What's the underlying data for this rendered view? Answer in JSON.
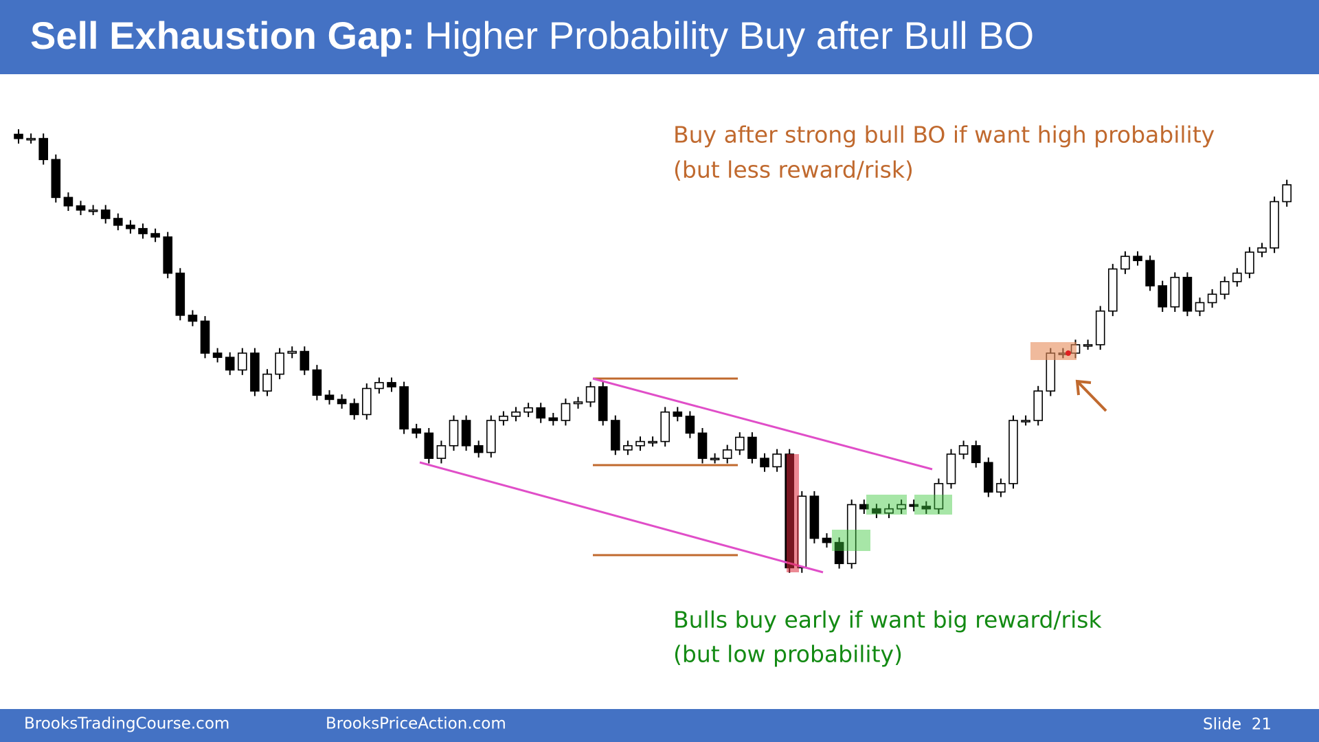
{
  "chart_data": {
    "type": "candlestick",
    "title_lead": "Sell Exhaustion Gap:",
    "title": "Higher Probability Buy after Bull BO",
    "annotations": [
      [
        "Buy after strong bull BO if want high probability",
        "(but less reward/risk)"
      ],
      [
        "Bulls buy early if want big reward/risk",
        "(but low probability)"
      ]
    ],
    "ylim": [
      0,
      600
    ],
    "open": [
      540,
      535,
      535,
      510,
      465,
      455,
      450,
      450,
      440,
      432,
      428,
      422,
      418,
      375,
      325,
      318,
      280,
      275,
      260,
      280,
      235,
      255,
      280,
      282,
      260,
      230,
      225,
      220,
      207,
      238,
      245,
      240,
      190,
      185,
      155,
      170,
      200,
      170,
      162,
      200,
      205,
      210,
      215,
      203,
      200,
      220,
      222,
      240,
      200,
      165,
      170,
      175,
      175,
      210,
      205,
      185,
      155,
      155,
      165,
      180,
      155,
      145,
      160,
      25,
      110,
      60,
      55,
      30,
      100,
      95,
      90,
      95,
      100,
      98,
      95,
      125,
      160,
      170,
      150,
      115,
      125,
      200,
      200,
      235,
      280,
      280,
      290,
      290,
      330,
      380,
      395,
      390,
      360,
      335,
      370,
      330,
      340,
      350,
      365,
      375,
      400,
      405,
      460
    ],
    "high": [
      546,
      541,
      541,
      516,
      471,
      461,
      456,
      456,
      446,
      438,
      434,
      428,
      424,
      381,
      331,
      324,
      286,
      281,
      286,
      286,
      261,
      286,
      288,
      288,
      266,
      236,
      231,
      226,
      244,
      251,
      251,
      246,
      196,
      191,
      176,
      206,
      206,
      176,
      206,
      211,
      216,
      221,
      221,
      209,
      226,
      228,
      246,
      246,
      206,
      176,
      181,
      181,
      216,
      216,
      211,
      191,
      161,
      171,
      186,
      186,
      161,
      166,
      166,
      116,
      116,
      66,
      61,
      106,
      106,
      101,
      101,
      106,
      106,
      104,
      131,
      166,
      176,
      176,
      156,
      131,
      206,
      206,
      241,
      286,
      286,
      296,
      296,
      336,
      386,
      401,
      401,
      396,
      366,
      376,
      376,
      346,
      356,
      371,
      381,
      406,
      411,
      466,
      486
    ],
    "low": [
      529,
      529,
      504,
      459,
      449,
      444,
      444,
      434,
      426,
      422,
      416,
      412,
      369,
      319,
      312,
      274,
      269,
      254,
      254,
      229,
      229,
      249,
      274,
      254,
      224,
      219,
      214,
      201,
      201,
      232,
      234,
      184,
      179,
      149,
      149,
      164,
      164,
      156,
      156,
      194,
      199,
      204,
      197,
      194,
      194,
      214,
      216,
      194,
      159,
      159,
      164,
      169,
      169,
      199,
      179,
      149,
      149,
      149,
      159,
      149,
      139,
      139,
      19,
      19,
      54,
      49,
      24,
      24,
      89,
      84,
      84,
      89,
      92,
      89,
      89,
      119,
      154,
      144,
      109,
      109,
      119,
      194,
      194,
      229,
      274,
      274,
      284,
      284,
      324,
      374,
      384,
      354,
      329,
      329,
      324,
      324,
      334,
      344,
      359,
      369,
      394,
      399,
      454
    ],
    "close": [
      535,
      535,
      510,
      465,
      455,
      450,
      450,
      440,
      432,
      428,
      422,
      418,
      375,
      325,
      318,
      280,
      275,
      260,
      280,
      235,
      255,
      280,
      282,
      260,
      230,
      225,
      220,
      207,
      238,
      245,
      240,
      190,
      185,
      155,
      170,
      200,
      170,
      162,
      200,
      205,
      210,
      215,
      203,
      200,
      220,
      222,
      240,
      200,
      165,
      170,
      175,
      175,
      210,
      205,
      185,
      155,
      155,
      165,
      180,
      155,
      145,
      160,
      25,
      110,
      60,
      55,
      30,
      100,
      95,
      90,
      95,
      100,
      98,
      95,
      125,
      160,
      170,
      150,
      115,
      125,
      200,
      200,
      235,
      280,
      280,
      290,
      290,
      330,
      380,
      395,
      390,
      360,
      335,
      370,
      330,
      340,
      350,
      365,
      375,
      400,
      405,
      460,
      480
    ]
  },
  "footer": {
    "left": "BrooksTradingCourse.com",
    "center": "BrooksPriceAction.com",
    "slide": "Slide  21"
  }
}
